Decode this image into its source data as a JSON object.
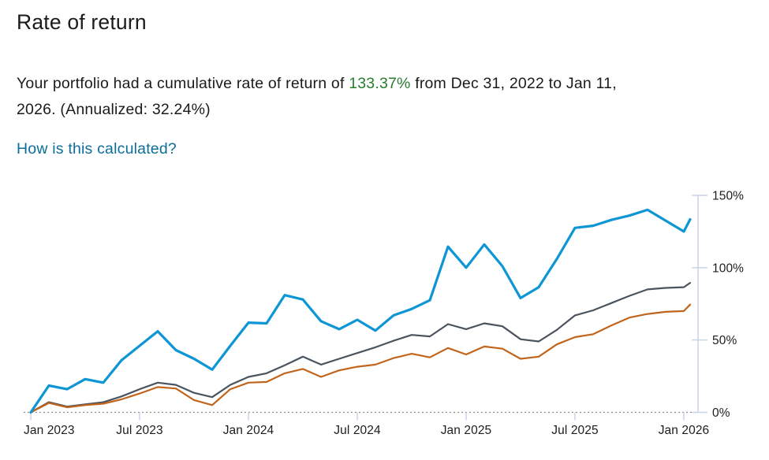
{
  "page": {
    "title": "Rate of return",
    "summary": {
      "text_before_value": "Your portfolio had a cumulative rate of return of ",
      "value": "133.37%",
      "text_after_value_line1": " from Dec 31, 2022 to Jan 11, ",
      "text_line2": "2026. (Annualized: 32.24%)"
    },
    "link_label": "How is this calculated?"
  },
  "colors": {
    "value_green": "#287d2e",
    "link_teal": "#0b6e9b",
    "axis_periwinkle": "#c9d3ea",
    "baseline_gray": "#8e8e8e",
    "tick_text": "#1d1d1d",
    "series_blue": "#0e96d4",
    "series_dark_gray": "#4a545e",
    "series_orange": "#c1651d"
  },
  "chart_data": {
    "type": "line",
    "title": "",
    "xlabel": "",
    "ylabel": "",
    "ylim": [
      0,
      150
    ],
    "grid": false,
    "legend": "none",
    "zero_baseline_dotted": true,
    "y_axis_side": "right",
    "y_ticks": [
      {
        "value": 0,
        "label": "0%"
      },
      {
        "value": 50,
        "label": "50%"
      },
      {
        "value": 100,
        "label": "100%"
      },
      {
        "value": 150,
        "label": "150%"
      }
    ],
    "x_ticks": [
      {
        "month_index": 0,
        "label": "Jan 2023"
      },
      {
        "month_index": 6,
        "label": "Jul 2023"
      },
      {
        "month_index": 12,
        "label": "Jan 2024"
      },
      {
        "month_index": 18,
        "label": "Jul 2024"
      },
      {
        "month_index": 24,
        "label": "Jan 2025"
      },
      {
        "month_index": 30,
        "label": "Jul 2025"
      },
      {
        "month_index": 36,
        "label": "Jan 2026"
      }
    ],
    "x": [
      "Dec 31 2022",
      "Jan 2023",
      "Feb 2023",
      "Mar 2023",
      "Apr 2023",
      "May 2023",
      "Jun 2023",
      "Jul 2023",
      "Aug 2023",
      "Sep 2023",
      "Oct 2023",
      "Nov 2023",
      "Dec 2023",
      "Jan 2024",
      "Feb 2024",
      "Mar 2024",
      "Apr 2024",
      "May 2024",
      "Jun 2024",
      "Jul 2024",
      "Aug 2024",
      "Sep 2024",
      "Oct 2024",
      "Nov 2024",
      "Dec 2024",
      "Jan 2025",
      "Feb 2025",
      "Mar 2025",
      "Apr 2025",
      "May 2025",
      "Jun 2025",
      "Jul 2025",
      "Aug 2025",
      "Sep 2025",
      "Oct 2025",
      "Nov 2025",
      "Dec 2025",
      "Jan 11 2026"
    ],
    "series": [
      {
        "id": "line-dark-gray",
        "color": "#4a545e",
        "stroke_width": 2.2,
        "values": [
          0,
          7,
          4,
          5.5,
          7,
          11,
          16,
          20.5,
          19,
          13.5,
          10.5,
          19,
          24.5,
          27,
          32.5,
          38.5,
          33,
          37,
          41,
          45,
          49.5,
          53.5,
          52.5,
          61,
          57.5,
          61.5,
          59.5,
          50.5,
          49,
          57,
          67,
          70.5,
          75.5,
          80.5,
          85,
          86,
          86.5,
          89.5
        ]
      },
      {
        "id": "line-orange",
        "color": "#c1651d",
        "stroke_width": 2.2,
        "values": [
          0,
          6.5,
          3.5,
          5,
          6,
          9,
          13,
          17.5,
          16.5,
          8.5,
          5,
          16,
          20.5,
          21,
          27,
          30,
          24.5,
          29,
          31.5,
          33,
          37.5,
          40.5,
          38,
          44.5,
          40,
          45.5,
          44,
          37,
          38.5,
          47,
          52,
          54,
          60,
          65.5,
          68,
          69.5,
          70,
          74.5
        ]
      },
      {
        "id": "portfolio-blue",
        "color": "#0e96d4",
        "stroke_width": 3.2,
        "values": [
          0,
          18.5,
          16,
          23,
          20.5,
          36,
          46,
          56,
          43,
          37,
          29.5,
          46,
          62,
          61.5,
          81,
          78,
          63,
          57.5,
          64,
          56.5,
          67,
          71.5,
          77.5,
          114.5,
          100,
          116,
          101,
          79,
          86.5,
          106,
          127.5,
          129,
          133,
          136,
          140,
          132.5,
          125,
          133.37
        ]
      }
    ]
  }
}
